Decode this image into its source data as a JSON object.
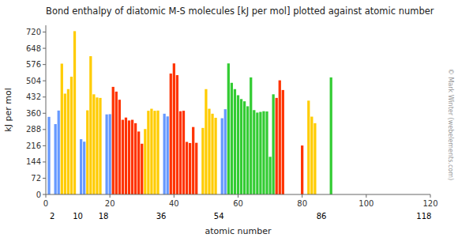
{
  "chart_data": {
    "type": "bar",
    "title": "Bond enthalpy of diatomic M-S molecules [kJ per mol] plotted against atomic number",
    "xlabel": "atomic number",
    "ylabel": "kJ per mol",
    "x": [
      1,
      3,
      4,
      5,
      6,
      7,
      8,
      9,
      11,
      12,
      13,
      14,
      15,
      16,
      17,
      19,
      20,
      21,
      22,
      23,
      24,
      25,
      26,
      27,
      28,
      29,
      30,
      31,
      32,
      33,
      34,
      35,
      37,
      38,
      39,
      40,
      41,
      42,
      43,
      44,
      45,
      46,
      47,
      49,
      50,
      51,
      52,
      53,
      55,
      56,
      57,
      58,
      59,
      60,
      61,
      62,
      63,
      64,
      65,
      66,
      67,
      68,
      69,
      70,
      71,
      72,
      73,
      74,
      80,
      82,
      83,
      84,
      89
    ],
    "values": [
      344,
      312,
      372,
      580,
      447,
      467,
      522,
      724,
      245,
      234,
      373,
      613,
      444,
      430,
      428,
      355,
      356,
      477,
      456,
      420,
      331,
      341,
      328,
      331,
      316,
      279,
      225,
      290,
      371,
      380,
      371,
      372,
      358,
      346,
      536,
      581,
      529,
      369,
      371,
      233,
      228,
      299,
      229,
      295,
      467,
      380,
      358,
      340,
      338,
      378,
      581,
      495,
      467,
      440,
      423,
      413,
      391,
      519,
      374,
      363,
      366,
      369,
      368,
      167,
      444,
      428,
      506,
      463,
      217,
      416,
      345,
      316,
      519
    ],
    "colors": [
      "#6699ff",
      "#6699ff",
      "#6699ff",
      "#ffcc00",
      "#ffcc00",
      "#ffcc00",
      "#ffcc00",
      "#ffcc00",
      "#6699ff",
      "#6699ff",
      "#ffcc00",
      "#ffcc00",
      "#ffcc00",
      "#ffcc00",
      "#ffcc00",
      "#6699ff",
      "#6699ff",
      "#ff3300",
      "#ff3300",
      "#ff3300",
      "#ff3300",
      "#ff3300",
      "#ff3300",
      "#ff3300",
      "#ff3300",
      "#ff3300",
      "#ff3300",
      "#ffcc00",
      "#ffcc00",
      "#ffcc00",
      "#ffcc00",
      "#ffcc00",
      "#6699ff",
      "#6699ff",
      "#ff3300",
      "#ff3300",
      "#ff3300",
      "#ff3300",
      "#ff3300",
      "#ff3300",
      "#ff3300",
      "#ff3300",
      "#ff3300",
      "#ffcc00",
      "#ffcc00",
      "#ffcc00",
      "#ffcc00",
      "#ffcc00",
      "#6699ff",
      "#6699ff",
      "#33cc33",
      "#33cc33",
      "#33cc33",
      "#33cc33",
      "#33cc33",
      "#33cc33",
      "#33cc33",
      "#33cc33",
      "#33cc33",
      "#33cc33",
      "#33cc33",
      "#33cc33",
      "#33cc33",
      "#33cc33",
      "#33cc33",
      "#ff3300",
      "#ff3300",
      "#ff3300",
      "#ff3300",
      "#ffcc00",
      "#ffcc00",
      "#ffcc00",
      "#33cc33"
    ],
    "xlim": [
      0,
      120
    ],
    "xticks": [
      0,
      20,
      40,
      60,
      80,
      100,
      120
    ],
    "ylim": [
      0,
      750
    ],
    "yticks": [
      0,
      72,
      144,
      216,
      288,
      360,
      432,
      504,
      576,
      648,
      720
    ],
    "x2lim": [
      0,
      120
    ],
    "x2ticks": [
      2,
      10,
      18,
      36,
      54,
      86,
      118
    ],
    "grid": false,
    "annotations": [
      "© Mark Winter (webelements.com)"
    ]
  }
}
